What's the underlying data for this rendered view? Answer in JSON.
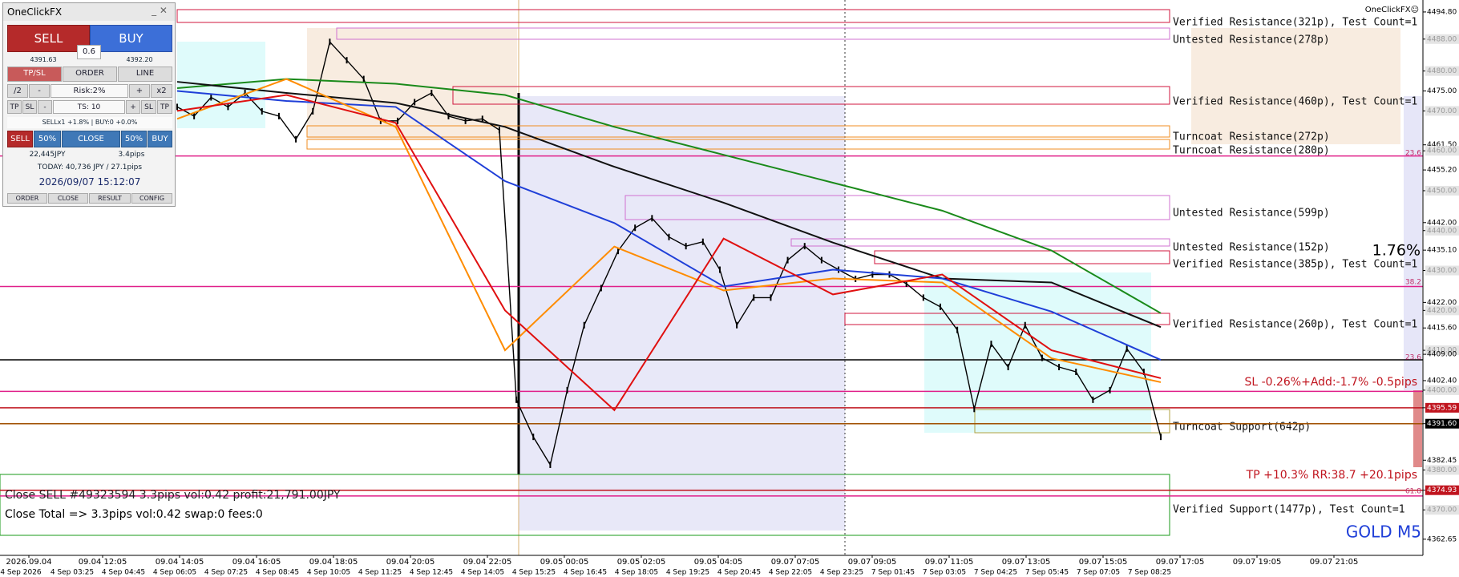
{
  "panel": {
    "title": "OneClickFX",
    "sell": "SELL",
    "buy": "BUY",
    "lot": "0.6",
    "bid": "4391.63",
    "ask": "4392.20",
    "tabs": [
      "TP/SL",
      "ORDER",
      "LINE"
    ],
    "risk_row": [
      "/2",
      "-",
      "Risk:2%",
      "+",
      "x2"
    ],
    "ts_row": [
      "TP",
      "SL",
      "-",
      "TS: 10",
      "+",
      "SL",
      "TP"
    ],
    "position_status": "SELLx1 +1.8% | BUY:0 +0.0%",
    "close_row": [
      "SELL",
      "50%",
      "CLOSE",
      "50%",
      "BUY"
    ],
    "profit": "22,445JPY",
    "pips": "3.4pips",
    "today": "TODAY: 40,736 JPY / 27.1pips",
    "clock": "2026/09/07  15:12:07",
    "footer": [
      "ORDER",
      "CLOSE",
      "RESULT",
      "CONFIG"
    ]
  },
  "chart": {
    "symbol": "GOLD M5",
    "indicator_name": "OneClickFX☺",
    "ylim": [
      4358.6,
      4497.8
    ],
    "price_axis": [
      {
        "value": 4494.8,
        "label": "4494.80",
        "style": "plain"
      },
      {
        "value": 4488.0,
        "label": "4488.00",
        "style": "gray"
      },
      {
        "value": 4480.0,
        "label": "4480.00",
        "style": "gray"
      },
      {
        "value": 4475.0,
        "label": "4475.00",
        "style": "plain"
      },
      {
        "value": 4470.0,
        "label": "4470.00",
        "style": "gray"
      },
      {
        "value": 4461.5,
        "label": "4461.50",
        "style": "plain"
      },
      {
        "value": 4460.0,
        "label": "4460.00",
        "style": "gray"
      },
      {
        "value": 4455.2,
        "label": "4455.20",
        "style": "plain"
      },
      {
        "value": 4450.0,
        "label": "4450.00",
        "style": "gray"
      },
      {
        "value": 4442.0,
        "label": "4442.00",
        "style": "plain"
      },
      {
        "value": 4440.0,
        "label": "4440.00",
        "style": "gray"
      },
      {
        "value": 4435.1,
        "label": "4435.10",
        "style": "plain"
      },
      {
        "value": 4430.0,
        "label": "4430.00",
        "style": "gray"
      },
      {
        "value": 4422.0,
        "label": "4422.00",
        "style": "plain"
      },
      {
        "value": 4420.0,
        "label": "4420.00",
        "style": "gray"
      },
      {
        "value": 4415.6,
        "label": "4415.60",
        "style": "plain"
      },
      {
        "value": 4410.0,
        "label": "4410.00",
        "style": "gray"
      },
      {
        "value": 4409.0,
        "label": "4409.00",
        "style": "plain"
      },
      {
        "value": 4402.4,
        "label": "4402.40",
        "style": "plain"
      },
      {
        "value": 4400.0,
        "label": "4400.00",
        "style": "gray"
      },
      {
        "value": 4395.59,
        "label": "4395.59",
        "style": "red"
      },
      {
        "value": 4391.6,
        "label": "4391.60",
        "style": "black"
      },
      {
        "value": 4382.45,
        "label": "4382.45",
        "style": "plain"
      },
      {
        "value": 4380.0,
        "label": "4380.00",
        "style": "gray"
      },
      {
        "value": 4374.93,
        "label": "4374.93",
        "style": "red"
      },
      {
        "value": 4370.0,
        "label": "4370.00",
        "style": "gray"
      },
      {
        "value": 4362.65,
        "label": "4362.65",
        "style": "plain"
      }
    ],
    "time_axis_top": [
      "2026.09.04",
      "09.04 12:05",
      "09.04 14:05",
      "09.04 16:05",
      "09.04 18:05",
      "09.04 20:05",
      "09.04 22:05",
      "09.05 00:05",
      "09.05 02:05",
      "09.05 04:05",
      "09.07 07:05",
      "09.07 09:05",
      "09.07 11:05",
      "09.07 13:05",
      "09.07 15:05",
      "09.07 17:05",
      "09.07 19:05",
      "09.07 21:05"
    ],
    "time_axis_bottom": [
      "4 Sep 2026",
      "4 Sep 03:25",
      "4 Sep 04:45",
      "4 Sep 06:05",
      "4 Sep 07:25",
      "4 Sep 08:45",
      "4 Sep 10:05",
      "4 Sep 11:25",
      "4 Sep 12:45",
      "4 Sep 14:05",
      "4 Sep 15:25",
      "4 Sep 16:45",
      "4 Sep 18:05",
      "4 Sep 19:25",
      "4 Sep 20:45",
      "4 Sep 22:05",
      "4 Sep 23:25",
      "7 Sep 01:45",
      "7 Sep 03:05",
      "7 Sep 04:25",
      "7 Sep 05:45",
      "7 Sep 07:05",
      "7 Sep 08:25"
    ],
    "price": {
      "color": "#000000",
      "values": [
        4471.0,
        4468.7,
        4473.4,
        4471.0,
        4474.5,
        4469.9,
        4468.7,
        4462.9,
        4469.9,
        4487.3,
        4482.7,
        4478.0,
        4467.5,
        4467.5,
        4472.2,
        4474.5,
        4468.7,
        4467.5,
        4468.0,
        4465.2,
        4397.6,
        4388.3,
        4381.3,
        4400.0,
        4416.3,
        4425.6,
        4434.9,
        4440.7,
        4443.1,
        4438.4,
        4436.1,
        4437.2,
        4430.2,
        4416.3,
        4423.2,
        4423.2,
        4432.6,
        4436.1,
        4432.6,
        4430.2,
        4427.9,
        4429.0,
        4429.0,
        4426.7,
        4423.2,
        4420.9,
        4415.1,
        4395.3,
        4411.6,
        4405.8,
        4416.3,
        4408.1,
        4405.8,
        4404.6,
        4397.6,
        4400.0,
        4410.4,
        4404.6,
        4388.3
      ]
    },
    "moving_averages": [
      {
        "color": "#1a8a1a",
        "values": [
          4475.7,
          4478.0,
          4476.8,
          4474.0,
          4466.0,
          4459.0,
          4452.0,
          4445.0,
          4435.0,
          4419.3
        ]
      },
      {
        "color": "#111111",
        "values": [
          4477.3,
          4474.5,
          4472.0,
          4466.0,
          4456.0,
          4447.0,
          4437.0,
          4428.0,
          4427.0,
          4415.8
        ]
      },
      {
        "color": "#1f3fd8",
        "values": [
          4475.0,
          4472.5,
          4471.0,
          4452.4,
          4441.9,
          4426.0,
          4430.2,
          4428.0,
          4419.7,
          4407.6
        ]
      },
      {
        "color": "#ff8c00",
        "values": [
          4468.0,
          4478.0,
          4466.0,
          4410.0,
          4436.0,
          4425.0,
          4428.0,
          4427.0,
          4408.0,
          4402.0
        ]
      },
      {
        "color": "#e01010",
        "values": [
          4470.0,
          4474.0,
          4467.0,
          4420.0,
          4395.0,
          4438.0,
          4424.0,
          4429.0,
          4410.0,
          4403.0
        ]
      }
    ],
    "levels": [
      {
        "value": 4458.7,
        "color": "#e0208a"
      },
      {
        "value": 4426.0,
        "color": "#e0208a"
      },
      {
        "value": 4407.6,
        "color": "#000000"
      },
      {
        "value": 4399.7,
        "color": "#e0208a"
      },
      {
        "value": 4395.59,
        "color": "#c0141e"
      },
      {
        "value": 4391.6,
        "color": "#a05000"
      },
      {
        "value": 4374.93,
        "color": "#c0141e"
      },
      {
        "value": 4373.5,
        "color": "#e0208a"
      }
    ],
    "zones": [
      "Verified Resistance(321p), Test Count=1",
      "Untested Resistance(278p)",
      "Verified Resistance(460p), Test Count=1",
      "Turncoat Resistance(272p)",
      "Turncoat Resistance(280p)",
      "Untested Resistance(599p)",
      "Untested Resistance(152p)",
      "Verified Resistance(385p), Test Count=1",
      "Verified Resistance(260p), Test Count=1",
      "Turncoat Support(642p)",
      "Verified Support(1477p), Test Count=1"
    ],
    "fib_labels": [
      "23.6",
      "38.2",
      "23.6",
      "61.8"
    ],
    "risk_percent": "1.76%",
    "sl_text": "SL -0.26%+Add:-1.7% -0.5pips",
    "tp_text": "TP +10.3% RR:38.7 +20.1pips",
    "close_lines": [
      "Close SELL #49323594 3.3pips vol:0.42 profit:21,791.00JPY",
      "Close Total => 3.3pips vol:0.42 swap:0 fees:0"
    ]
  }
}
